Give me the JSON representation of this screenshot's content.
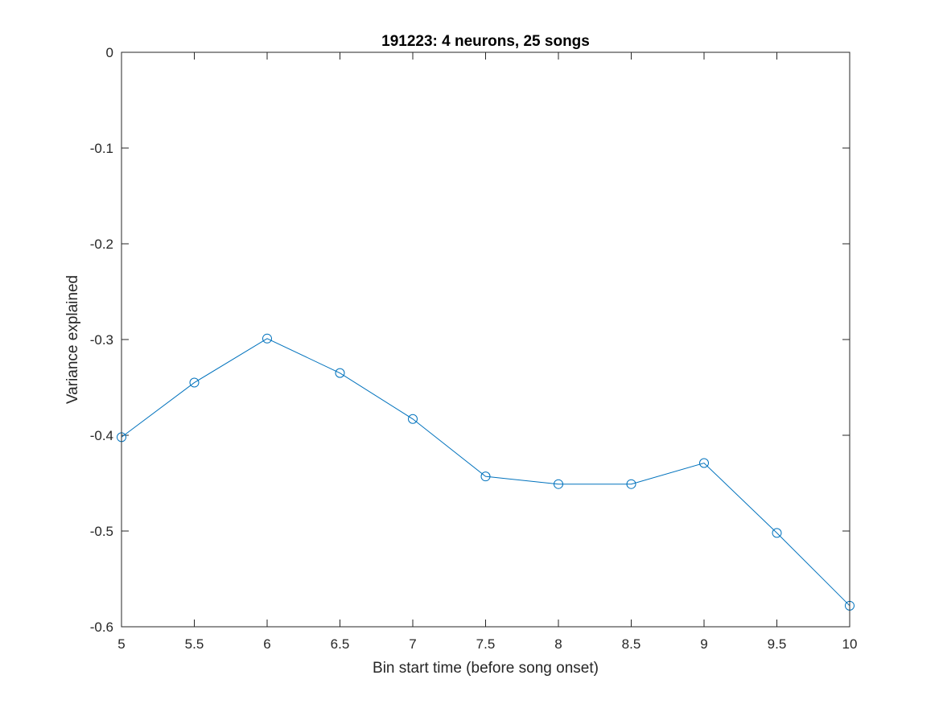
{
  "chart_data": {
    "type": "line",
    "title": "191223: 4 neurons, 25 songs",
    "xlabel": "Bin start time (before song onset)",
    "ylabel": "Variance explained",
    "xlim": [
      5,
      10
    ],
    "ylim": [
      -0.6,
      0
    ],
    "xticks": [
      "5",
      "5.5",
      "6",
      "6.5",
      "7",
      "7.5",
      "8",
      "8.5",
      "9",
      "9.5",
      "10"
    ],
    "yticks": [
      "0",
      "-0.1",
      "-0.2",
      "-0.3",
      "-0.4",
      "-0.5",
      "-0.6"
    ],
    "grid": false,
    "series": [
      {
        "x": [
          5,
          5.5,
          6,
          6.5,
          7,
          7.5,
          8,
          8.5,
          9,
          9.5,
          10
        ],
        "y": [
          -0.402,
          -0.345,
          -0.299,
          -0.335,
          -0.383,
          -0.443,
          -0.451,
          -0.451,
          -0.429,
          -0.502,
          -0.578
        ],
        "color": "#0072bd",
        "marker": "circle"
      }
    ],
    "reference_line": {
      "y": 0,
      "color": "#d62728",
      "style": "dashed"
    }
  }
}
